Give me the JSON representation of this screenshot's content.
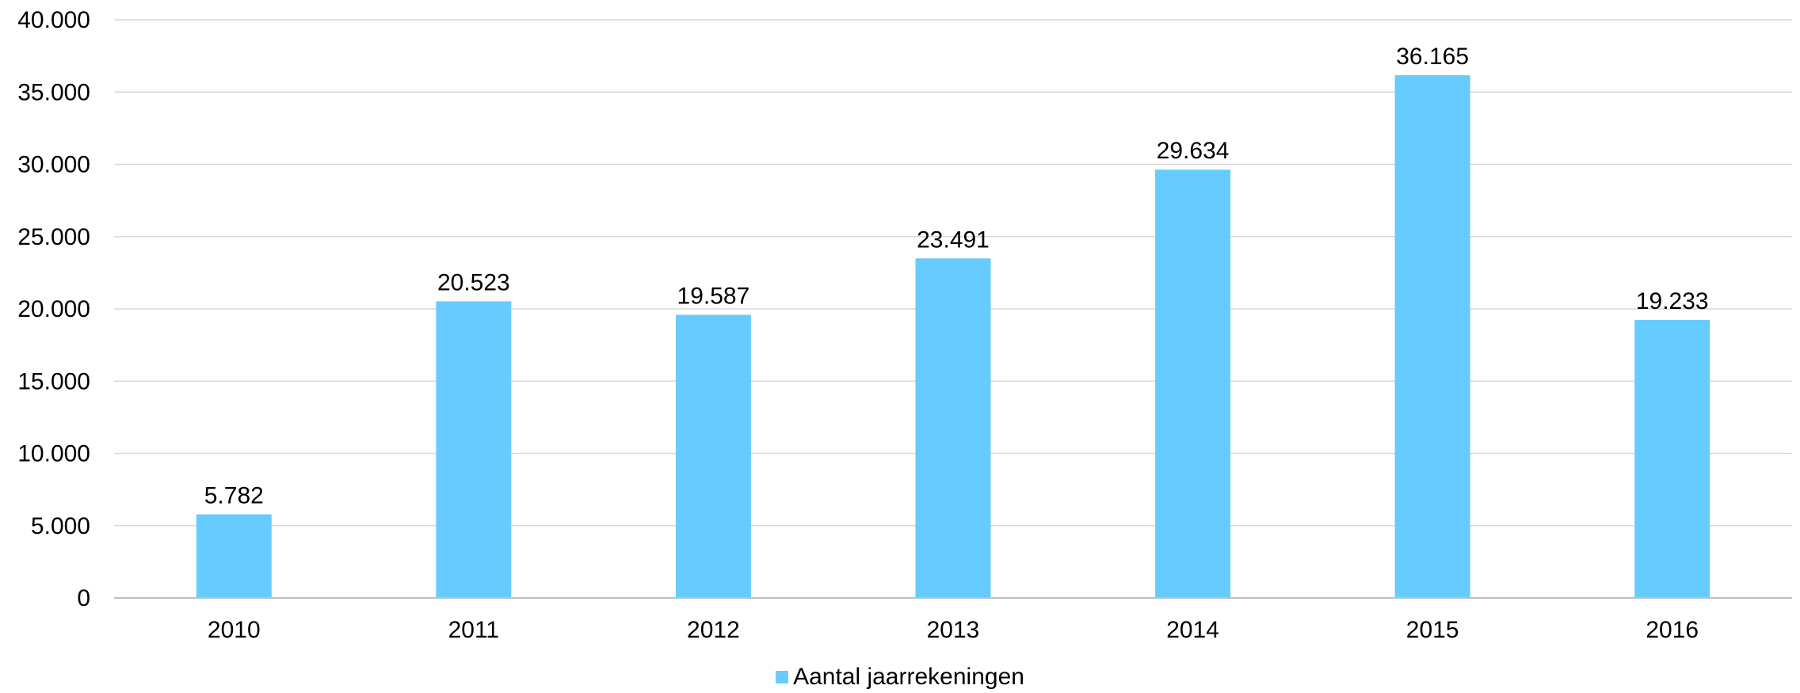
{
  "chart_data": {
    "type": "bar",
    "categories": [
      "2010",
      "2011",
      "2012",
      "2013",
      "2014",
      "2015",
      "2016"
    ],
    "series": [
      {
        "name": "Aantal jaarrekeningen",
        "values": [
          5782,
          20523,
          19587,
          23491,
          29634,
          36165,
          19233
        ],
        "data_labels": [
          "5.782",
          "20.523",
          "19.587",
          "23.491",
          "29.634",
          "36.165",
          "19.233"
        ],
        "color": "#66CCFF"
      }
    ],
    "ylim": [
      0,
      40000
    ],
    "yticks": [
      0,
      5000,
      10000,
      15000,
      20000,
      25000,
      30000,
      35000,
      40000
    ],
    "ytick_labels": [
      "0",
      "5.000",
      "10.000",
      "15.000",
      "20.000",
      "25.000",
      "30.000",
      "35.000",
      "40.000"
    ],
    "grid": "horizontal",
    "legend_position": "bottom"
  }
}
